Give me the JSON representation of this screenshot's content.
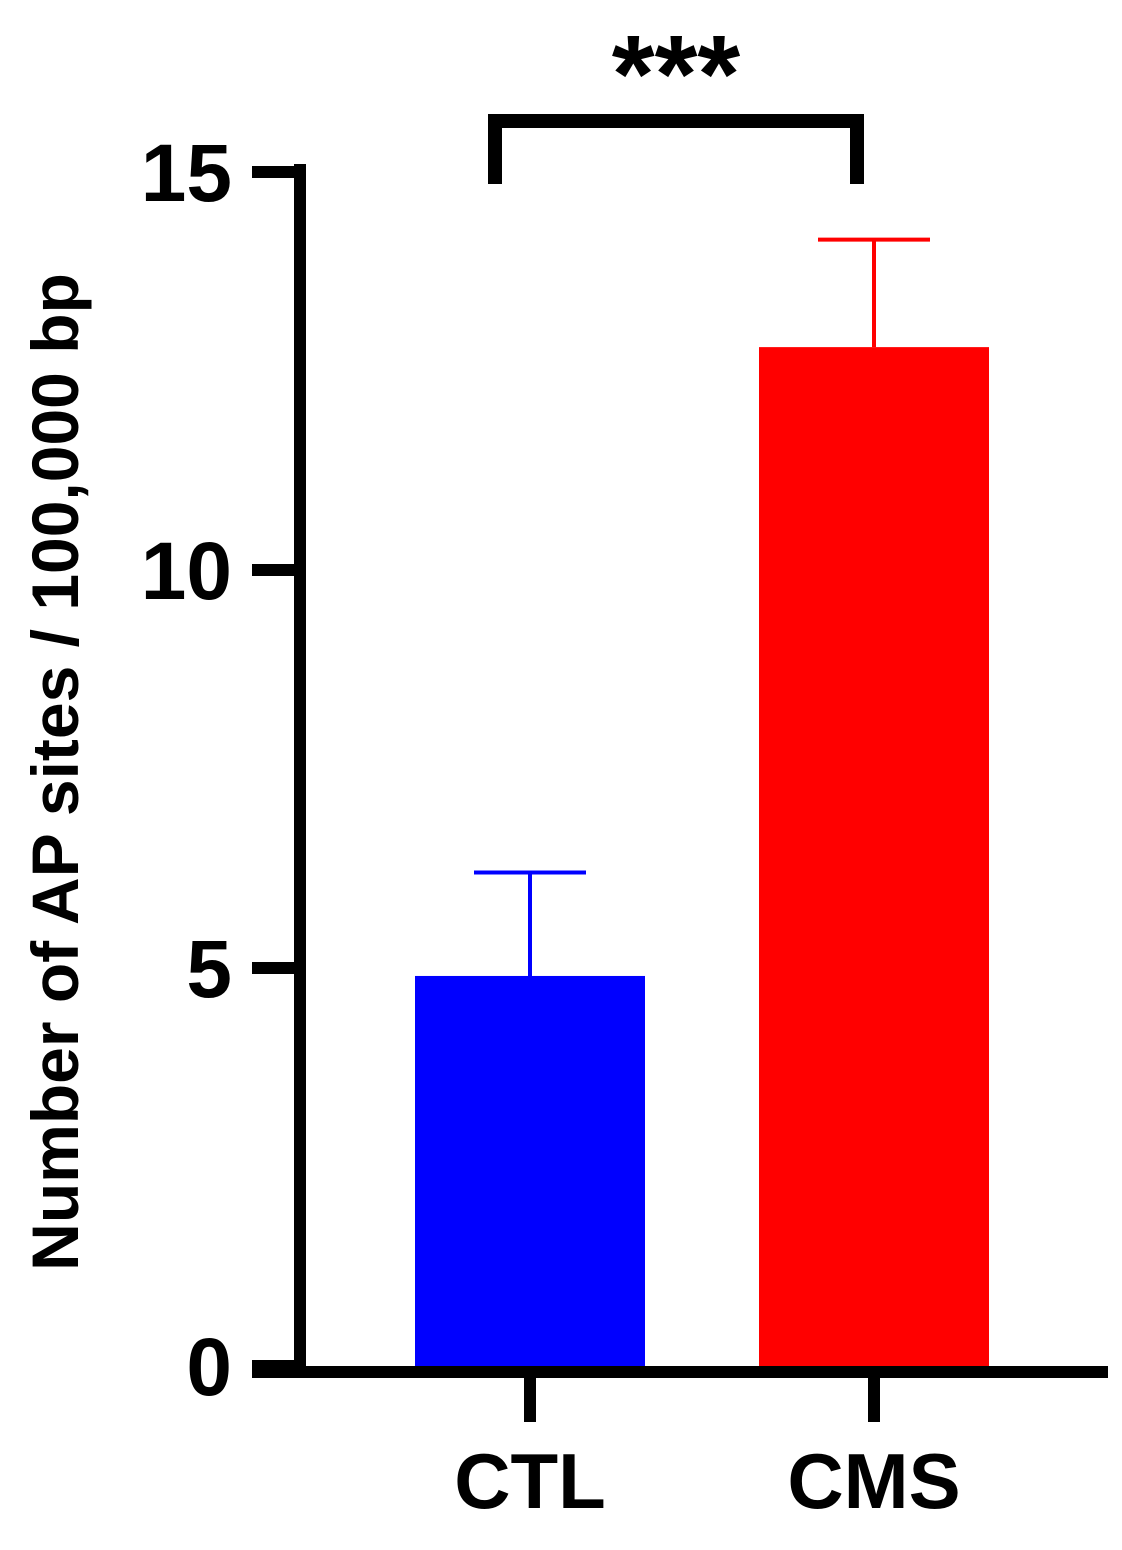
{
  "chart_data": {
    "type": "bar",
    "title": "",
    "xlabel": "",
    "ylabel": "Number of AP sites / 100,000 bp",
    "ylim": [
      0,
      15
    ],
    "yticks": [
      0,
      5,
      10,
      15
    ],
    "ytick_labels": [
      "0",
      "5",
      "10",
      "15"
    ],
    "categories": [
      "CTL",
      "CMS"
    ],
    "values": [
      4.9,
      12.8
    ],
    "error_upper": [
      6.2,
      14.15
    ],
    "colors": [
      "#0000ff",
      "#ff0000"
    ],
    "grid": false,
    "legend": "none",
    "annotations": [
      {
        "text": "***",
        "between": [
          "CTL",
          "CMS"
        ]
      }
    ]
  }
}
